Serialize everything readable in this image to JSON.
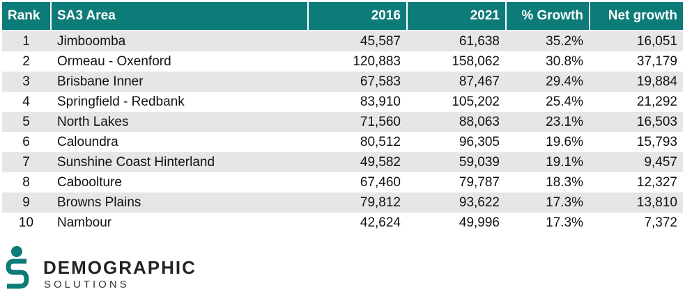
{
  "table": {
    "columns": [
      "Rank",
      "SA3 Area",
      "2016",
      "2021",
      "% Growth",
      "Net growth"
    ],
    "rows": [
      [
        "1",
        "Jimboomba",
        "45,587",
        "61,638",
        "35.2%",
        "16,051"
      ],
      [
        "2",
        "Ormeau - Oxenford",
        "120,883",
        "158,062",
        "30.8%",
        "37,179"
      ],
      [
        "3",
        "Brisbane Inner",
        "67,583",
        "87,467",
        "29.4%",
        "19,884"
      ],
      [
        "4",
        "Springfield - Redbank",
        "83,910",
        "105,202",
        "25.4%",
        "21,292"
      ],
      [
        "5",
        "North Lakes",
        "71,560",
        "88,063",
        "23.1%",
        "16,503"
      ],
      [
        "6",
        "Caloundra",
        "80,512",
        "96,305",
        "19.6%",
        "15,793"
      ],
      [
        "7",
        "Sunshine Coast Hinterland",
        "49,582",
        "59,039",
        "19.1%",
        "9,457"
      ],
      [
        "8",
        "Caboolture",
        "67,460",
        "79,787",
        "18.3%",
        "12,327"
      ],
      [
        "9",
        "Browns Plains",
        "79,812",
        "93,622",
        "17.3%",
        "13,810"
      ],
      [
        "10",
        "Nambour",
        "42,624",
        "49,996",
        "17.3%",
        "7,372"
      ]
    ]
  },
  "logo": {
    "name": "DEMOGRAPHIC",
    "tagline": "SOLUTIONS"
  }
}
